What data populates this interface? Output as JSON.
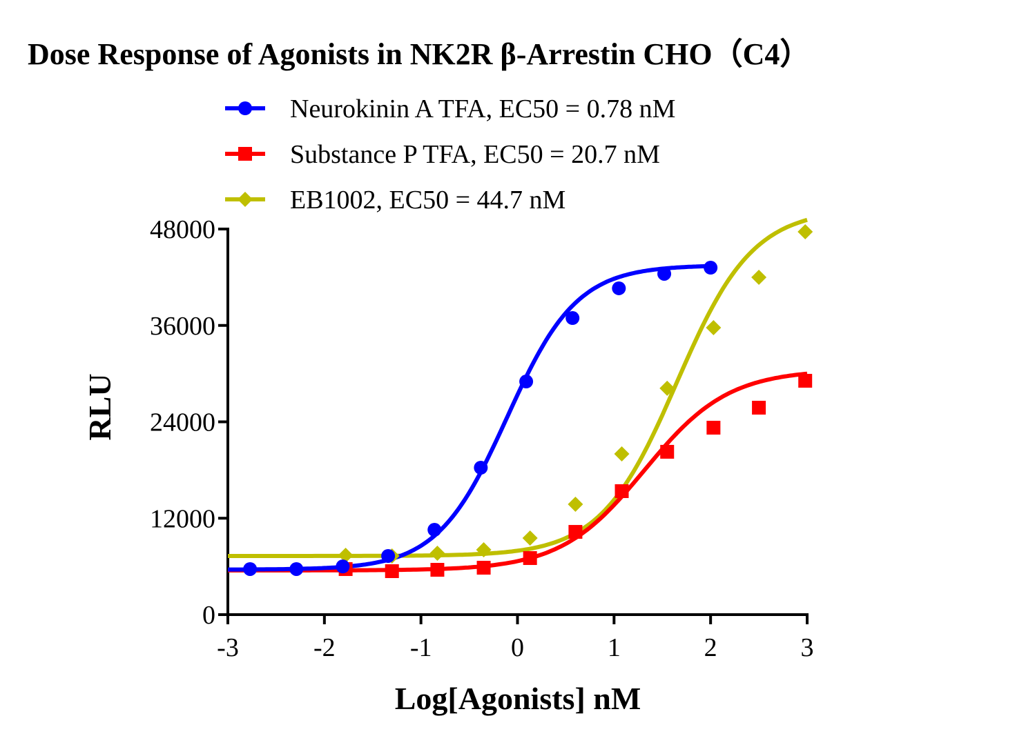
{
  "chart_data": {
    "type": "line",
    "title": "Dose Response of Agonists in NK2R β-Arrestin CHO（C4）",
    "xlabel": "Log[Agonists] nM",
    "ylabel": "RLU",
    "xlim": [
      -3,
      3
    ],
    "ylim": [
      0,
      48000
    ],
    "xticks": [
      "-3",
      "-2",
      "-1",
      "0",
      "1",
      "2",
      "3"
    ],
    "yticks": [
      "0",
      "12000",
      "24000",
      "36000",
      "48000"
    ],
    "grid": false,
    "legend_position": "top",
    "series": [
      {
        "name": "Neurokinin A TFA, EC50 = 0.78 nM",
        "color": "#0000ff",
        "marker": "circle",
        "x": [
          -2.77,
          -2.29,
          -1.81,
          -1.34,
          -0.86,
          -0.38,
          0.09,
          0.57,
          1.05,
          1.52,
          2.0
        ],
        "y": [
          5670,
          5670,
          6000,
          7300,
          10560,
          18290,
          29020,
          36920,
          40620,
          42420,
          43190
        ]
      },
      {
        "name": "Substance P TFA, EC50 = 20.7 nM",
        "color": "#ff0000",
        "marker": "square",
        "x": [
          -1.78,
          -1.3,
          -0.83,
          -0.35,
          0.13,
          0.6,
          1.08,
          1.55,
          2.03,
          2.5,
          2.98
        ],
        "y": [
          5670,
          5410,
          5580,
          5840,
          7040,
          10300,
          15370,
          20270,
          23270,
          25760,
          29110
        ]
      },
      {
        "name": "EB1002, EC50 = 44.7 nM",
        "color": "#bfbf00",
        "marker": "diamond",
        "x": [
          -1.78,
          -1.3,
          -0.83,
          -0.35,
          0.13,
          0.6,
          1.08,
          1.55,
          2.03,
          2.5,
          2.98
        ],
        "y": [
          7380,
          7300,
          7640,
          8070,
          9530,
          13740,
          20010,
          28170,
          35720,
          41990,
          47660
        ]
      }
    ]
  }
}
